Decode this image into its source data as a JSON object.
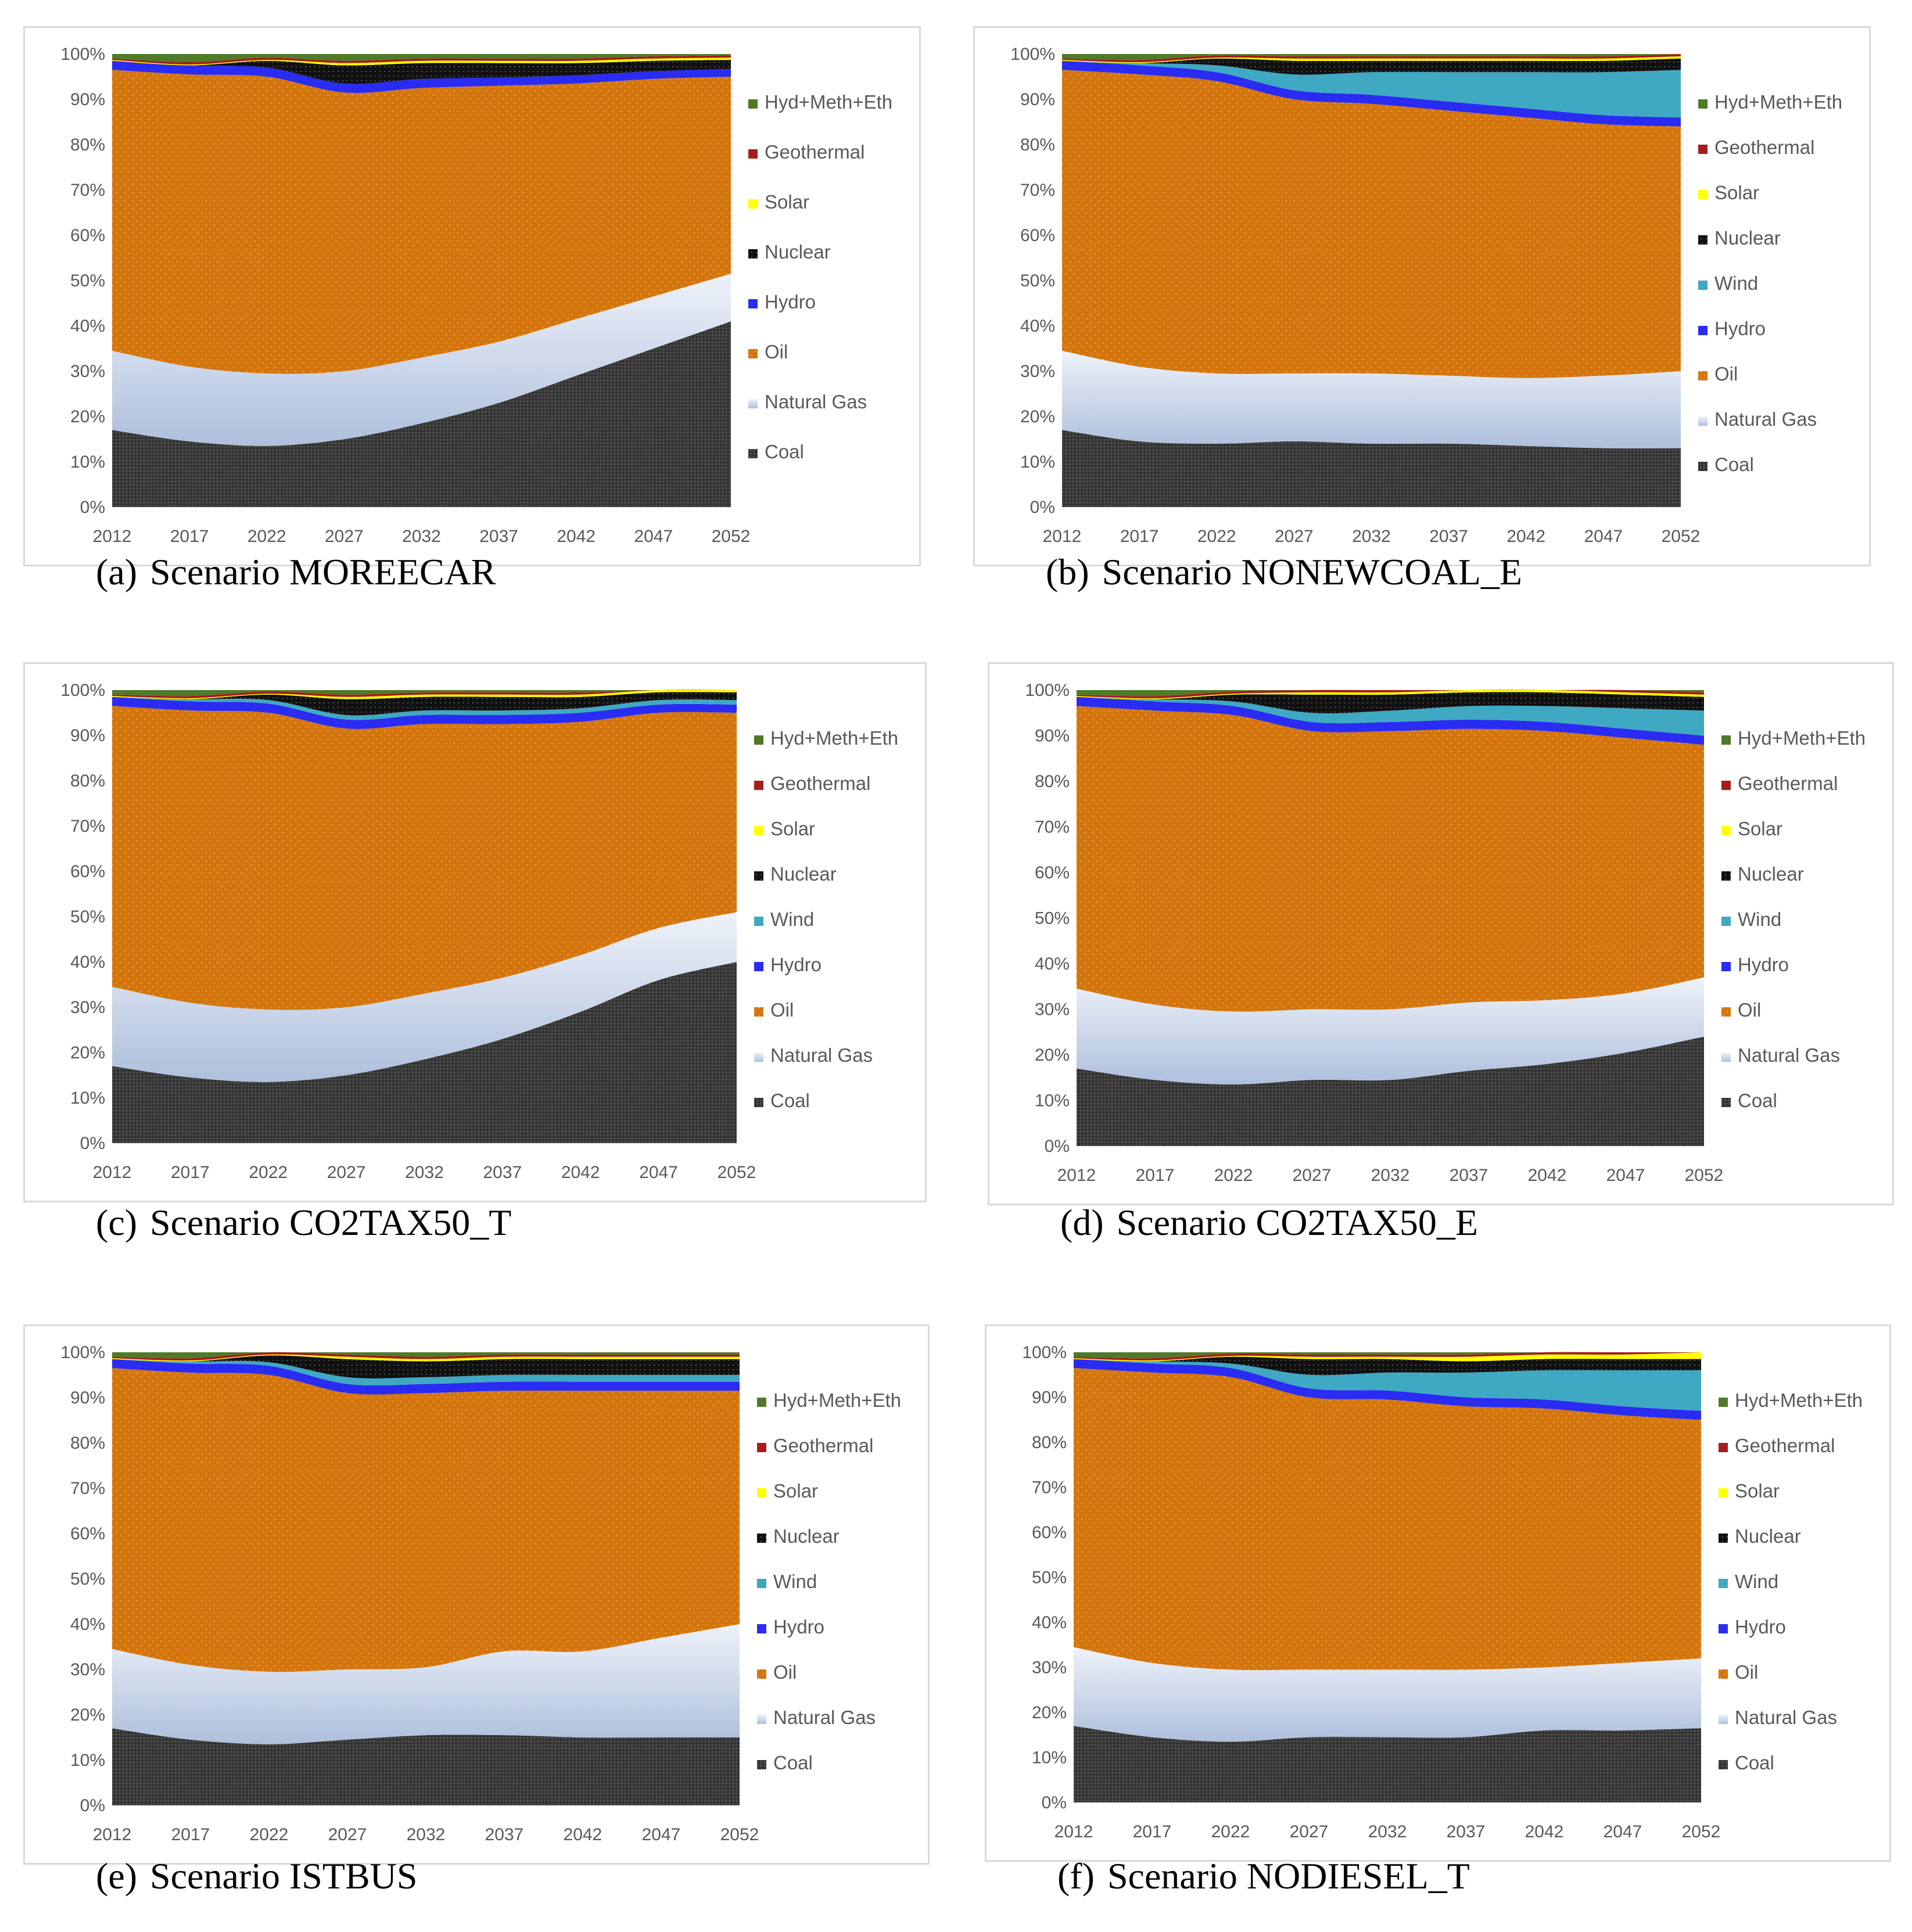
{
  "colors": {
    "Coal": "#3b3b3b",
    "Natural Gas": "#c5d2e6",
    "Oil": "#d4760d",
    "Hydro": "#2a2cf2",
    "Wind": "#3fa8c2",
    "Nuclear": "#111111",
    "Solar": "#ffff00",
    "Geothermal": "#a51d1d",
    "Hyd+Meth+Eth": "#4f7a28"
  },
  "chart_data": [
    {
      "id": "a",
      "type": "area",
      "stacked": true,
      "percent": true,
      "caption_letter": "(a)",
      "caption_text": "Scenario MOREECAR",
      "x": [
        "2012",
        "2017",
        "2022",
        "2027",
        "2032",
        "2037",
        "2042",
        "2047",
        "2052"
      ],
      "yticks": [
        "0%",
        "10%",
        "20%",
        "30%",
        "40%",
        "50%",
        "60%",
        "70%",
        "80%",
        "90%",
        "100%"
      ],
      "ylim": [
        0,
        100
      ],
      "legend": [
        "Hyd+Meth+Eth",
        "Geothermal",
        "Solar",
        "Nuclear",
        "Hydro",
        "Oil",
        "Natural Gas",
        "Coal"
      ],
      "series": [
        {
          "name": "Coal",
          "values": [
            17,
            14.5,
            13.5,
            15,
            18.5,
            23,
            29,
            35,
            41
          ]
        },
        {
          "name": "Natural Gas",
          "values": [
            17.5,
            16.5,
            16,
            15,
            14.5,
            13.5,
            12.5,
            11.5,
            10.5
          ]
        },
        {
          "name": "Oil",
          "values": [
            62,
            64.5,
            65.5,
            61.5,
            59.5,
            56.5,
            52,
            48,
            43.5
          ]
        },
        {
          "name": "Hydro",
          "values": [
            2,
            2,
            2,
            2,
            2,
            1.8,
            1.8,
            1.7,
            1.7
          ]
        },
        {
          "name": "Nuclear",
          "values": [
            0,
            0,
            1.5,
            4,
            3.5,
            3.2,
            2.7,
            2.3,
            2
          ]
        },
        {
          "name": "Solar",
          "values": [
            0.2,
            0.2,
            0.2,
            0.5,
            0.5,
            0.5,
            0.5,
            0.5,
            0.5
          ]
        },
        {
          "name": "Geothermal",
          "values": [
            0.3,
            0.5,
            0.5,
            0.5,
            0.5,
            0.5,
            0.5,
            0.5,
            0.5
          ]
        },
        {
          "name": "Hyd+Meth+Eth",
          "values": [
            1,
            1.8,
            0.8,
            1.5,
            1,
            1,
            1,
            0.5,
            0.3
          ]
        }
      ]
    },
    {
      "id": "b",
      "type": "area",
      "stacked": true,
      "percent": true,
      "caption_letter": "(b)",
      "caption_text": "Scenario NONEWCOAL_E",
      "x": [
        "2012",
        "2017",
        "2022",
        "2027",
        "2032",
        "2037",
        "2042",
        "2047",
        "2052"
      ],
      "yticks": [
        "0%",
        "10%",
        "20%",
        "30%",
        "40%",
        "50%",
        "60%",
        "70%",
        "80%",
        "90%",
        "100%"
      ],
      "ylim": [
        0,
        100
      ],
      "legend": [
        "Hyd+Meth+Eth",
        "Geothermal",
        "Solar",
        "Nuclear",
        "Wind",
        "Hydro",
        "Oil",
        "Natural Gas",
        "Coal"
      ],
      "series": [
        {
          "name": "Coal",
          "values": [
            17,
            14.5,
            14,
            14.5,
            14,
            14,
            13.5,
            13,
            13
          ]
        },
        {
          "name": "Natural Gas",
          "values": [
            17.5,
            16.5,
            15.5,
            15,
            15.5,
            15,
            15,
            16,
            17
          ]
        },
        {
          "name": "Oil",
          "values": [
            62,
            64.5,
            64.5,
            60.5,
            59.5,
            58.5,
            57.5,
            55.5,
            54
          ]
        },
        {
          "name": "Hydro",
          "values": [
            2,
            2,
            2,
            2,
            2,
            2,
            2,
            2,
            2
          ]
        },
        {
          "name": "Wind",
          "values": [
            0,
            0.5,
            1.5,
            3.5,
            5,
            6.5,
            8,
            9.5,
            10.5
          ]
        },
        {
          "name": "Nuclear",
          "values": [
            0,
            0,
            1.5,
            3,
            2.5,
            2.5,
            2.5,
            2.5,
            2.5
          ]
        },
        {
          "name": "Solar",
          "values": [
            0.2,
            0.2,
            0.2,
            0.5,
            0.5,
            0.5,
            0.5,
            0.5,
            0.5
          ]
        },
        {
          "name": "Geothermal",
          "values": [
            0.3,
            0.5,
            0.5,
            0.5,
            0.5,
            0.5,
            0.5,
            0.5,
            0.5
          ]
        },
        {
          "name": "Hyd+Meth+Eth",
          "values": [
            1,
            1.3,
            0.3,
            0.5,
            0.5,
            0.5,
            0.5,
            0.5,
            0
          ]
        }
      ]
    },
    {
      "id": "c",
      "type": "area",
      "stacked": true,
      "percent": true,
      "caption_letter": "(c)",
      "caption_text": "Scenario CO2TAX50_T",
      "x": [
        "2012",
        "2017",
        "2022",
        "2027",
        "2032",
        "2037",
        "2042",
        "2047",
        "2052"
      ],
      "yticks": [
        "0%",
        "10%",
        "20%",
        "30%",
        "40%",
        "50%",
        "60%",
        "70%",
        "80%",
        "90%",
        "100%"
      ],
      "ylim": [
        0,
        100
      ],
      "legend": [
        "Hyd+Meth+Eth",
        "Geothermal",
        "Solar",
        "Nuclear",
        "Wind",
        "Hydro",
        "Oil",
        "Natural Gas",
        "Coal"
      ],
      "series": [
        {
          "name": "Coal",
          "values": [
            17,
            14.5,
            13.5,
            15,
            18.5,
            23,
            29,
            36,
            40
          ]
        },
        {
          "name": "Natural Gas",
          "values": [
            17.5,
            16.5,
            16,
            15,
            14.5,
            13.5,
            12.5,
            11.5,
            11
          ]
        },
        {
          "name": "Oil",
          "values": [
            62,
            64.5,
            65.5,
            61.5,
            59.5,
            56,
            51.5,
            47.5,
            44
          ]
        },
        {
          "name": "Hydro",
          "values": [
            2,
            2,
            2,
            2,
            2,
            2,
            2,
            1.8,
            1.8
          ]
        },
        {
          "name": "Wind",
          "values": [
            0,
            0.5,
            0.8,
            1,
            1,
            1,
            1,
            1,
            1
          ]
        },
        {
          "name": "Nuclear",
          "values": [
            0,
            0,
            1.2,
            3.5,
            3,
            3,
            2.5,
            1.7,
            1.7
          ]
        },
        {
          "name": "Solar",
          "values": [
            0.2,
            0.2,
            0.2,
            0.5,
            0.5,
            0.5,
            0.5,
            0.5,
            0.5
          ]
        },
        {
          "name": "Geothermal",
          "values": [
            0.3,
            0.5,
            0.5,
            0.5,
            0.5,
            0.5,
            0.5,
            0.5,
            0.5
          ]
        },
        {
          "name": "Hyd+Meth+Eth",
          "values": [
            1,
            1.3,
            0.3,
            1,
            0.5,
            0.5,
            0.5,
            0,
            0
          ]
        }
      ]
    },
    {
      "id": "d",
      "type": "area",
      "stacked": true,
      "percent": true,
      "caption_letter": "(d)",
      "caption_text": "Scenario CO2TAX50_E",
      "x": [
        "2012",
        "2017",
        "2022",
        "2027",
        "2032",
        "2037",
        "2042",
        "2047",
        "2052"
      ],
      "yticks": [
        "0%",
        "10%",
        "20%",
        "30%",
        "40%",
        "50%",
        "60%",
        "70%",
        "80%",
        "90%",
        "100%"
      ],
      "ylim": [
        0,
        100
      ],
      "legend": [
        "Hyd+Meth+Eth",
        "Geothermal",
        "Solar",
        "Nuclear",
        "Wind",
        "Hydro",
        "Oil",
        "Natural Gas",
        "Coal"
      ],
      "series": [
        {
          "name": "Coal",
          "values": [
            17,
            14.5,
            13.5,
            14.5,
            14.5,
            16.5,
            18,
            20.5,
            24
          ]
        },
        {
          "name": "Natural Gas",
          "values": [
            17.5,
            16.5,
            16,
            15.5,
            15.5,
            15,
            14,
            13,
            13
          ]
        },
        {
          "name": "Oil",
          "values": [
            62,
            64.5,
            65,
            61,
            61,
            60,
            59,
            56,
            51
          ]
        },
        {
          "name": "Hydro",
          "values": [
            2,
            2,
            2,
            2,
            2,
            2,
            2,
            2,
            2
          ]
        },
        {
          "name": "Wind",
          "values": [
            0,
            0.5,
            1,
            2,
            2.5,
            3,
            3.5,
            4.5,
            5.5
          ]
        },
        {
          "name": "Nuclear",
          "values": [
            0,
            0,
            1.5,
            4,
            3.5,
            3,
            3,
            3,
            3
          ]
        },
        {
          "name": "Solar",
          "values": [
            0.2,
            0.2,
            0.2,
            0.5,
            0.5,
            0.5,
            0.5,
            0.5,
            0.5
          ]
        },
        {
          "name": "Geothermal",
          "values": [
            0.3,
            0.5,
            0.5,
            0.5,
            0.5,
            0.5,
            0.5,
            0.5,
            0.5
          ]
        },
        {
          "name": "Hyd+Meth+Eth",
          "values": [
            1,
            1.3,
            0.3,
            0,
            0,
            0,
            0,
            0,
            0.5
          ]
        }
      ]
    },
    {
      "id": "e",
      "type": "area",
      "stacked": true,
      "percent": true,
      "caption_letter": "(e)",
      "caption_text": "Scenario ISTBUS",
      "x": [
        "2012",
        "2017",
        "2022",
        "2027",
        "2032",
        "2037",
        "2042",
        "2047",
        "2052"
      ],
      "yticks": [
        "0%",
        "10%",
        "20%",
        "30%",
        "40%",
        "50%",
        "60%",
        "70%",
        "80%",
        "90%",
        "100%"
      ],
      "ylim": [
        0,
        100
      ],
      "legend": [
        "Hyd+Meth+Eth",
        "Geothermal",
        "Solar",
        "Nuclear",
        "Wind",
        "Hydro",
        "Oil",
        "Natural Gas",
        "Coal"
      ],
      "series": [
        {
          "name": "Coal",
          "values": [
            17,
            14.5,
            13.5,
            14.5,
            15.5,
            15.5,
            15,
            15,
            15
          ]
        },
        {
          "name": "Natural Gas",
          "values": [
            17.5,
            16.5,
            16,
            15.5,
            15,
            18.5,
            19,
            22,
            25
          ]
        },
        {
          "name": "Oil",
          "values": [
            62,
            64.5,
            65.5,
            61,
            60.5,
            57.5,
            57.5,
            54.5,
            51.5
          ]
        },
        {
          "name": "Hydro",
          "values": [
            2,
            2,
            2,
            2,
            2,
            2,
            2,
            2,
            2
          ]
        },
        {
          "name": "Wind",
          "values": [
            0,
            0.5,
            0.8,
            1.5,
            1.5,
            1.5,
            1.5,
            1.5,
            1.5
          ]
        },
        {
          "name": "Nuclear",
          "values": [
            0,
            0,
            1.5,
            4,
            3.5,
            3.5,
            3.5,
            3.5,
            3.5
          ]
        },
        {
          "name": "Solar",
          "values": [
            0.2,
            0.2,
            0.2,
            0.5,
            0.5,
            0.5,
            0.5,
            0.5,
            0.5
          ]
        },
        {
          "name": "Geothermal",
          "values": [
            0.3,
            0.5,
            0.5,
            0.5,
            0.5,
            0.5,
            0.5,
            0.5,
            0.5
          ]
        },
        {
          "name": "Hyd+Meth+Eth",
          "values": [
            1,
            1.3,
            0,
            0.5,
            1,
            0.5,
            0.5,
            0.5,
            0.5
          ]
        }
      ]
    },
    {
      "id": "f",
      "type": "area",
      "stacked": true,
      "percent": true,
      "caption_letter": "(f)",
      "caption_text": "Scenario NODIESEL_T",
      "x": [
        "2012",
        "2017",
        "2022",
        "2027",
        "2032",
        "2037",
        "2042",
        "2047",
        "2052"
      ],
      "yticks": [
        "0%",
        "10%",
        "20%",
        "30%",
        "40%",
        "50%",
        "60%",
        "70%",
        "80%",
        "90%",
        "100%"
      ],
      "ylim": [
        0,
        100
      ],
      "legend": [
        "Hyd+Meth+Eth",
        "Geothermal",
        "Solar",
        "Nuclear",
        "Wind",
        "Hydro",
        "Oil",
        "Natural Gas",
        "Coal"
      ],
      "series": [
        {
          "name": "Coal",
          "values": [
            17,
            14.5,
            13.5,
            14.5,
            14.5,
            14.5,
            16,
            16,
            16.5
          ]
        },
        {
          "name": "Natural Gas",
          "values": [
            17.5,
            16.5,
            16,
            15,
            15,
            15,
            14,
            15,
            15.5
          ]
        },
        {
          "name": "Oil",
          "values": [
            62,
            64.5,
            65,
            60.5,
            60,
            58.5,
            57.5,
            55,
            53
          ]
        },
        {
          "name": "Hydro",
          "values": [
            2,
            2,
            2,
            2,
            2,
            2,
            2,
            2,
            2
          ]
        },
        {
          "name": "Wind",
          "values": [
            0,
            0.5,
            1,
            3,
            4,
            5.5,
            6.5,
            8,
            9
          ]
        },
        {
          "name": "Nuclear",
          "values": [
            0,
            0,
            1.5,
            3.5,
            3,
            2.5,
            2.5,
            2.5,
            2.5
          ]
        },
        {
          "name": "Solar",
          "values": [
            0.2,
            0.2,
            0.2,
            0.5,
            0.5,
            1,
            1,
            1,
            1.5
          ]
        },
        {
          "name": "Geothermal",
          "values": [
            0.3,
            0.5,
            0.5,
            0.5,
            0.5,
            0.5,
            0.5,
            0.5,
            0
          ]
        },
        {
          "name": "Hyd+Meth+Eth",
          "values": [
            1,
            1.3,
            0.3,
            0.5,
            0.5,
            0.5,
            0,
            0,
            0
          ]
        }
      ]
    }
  ]
}
